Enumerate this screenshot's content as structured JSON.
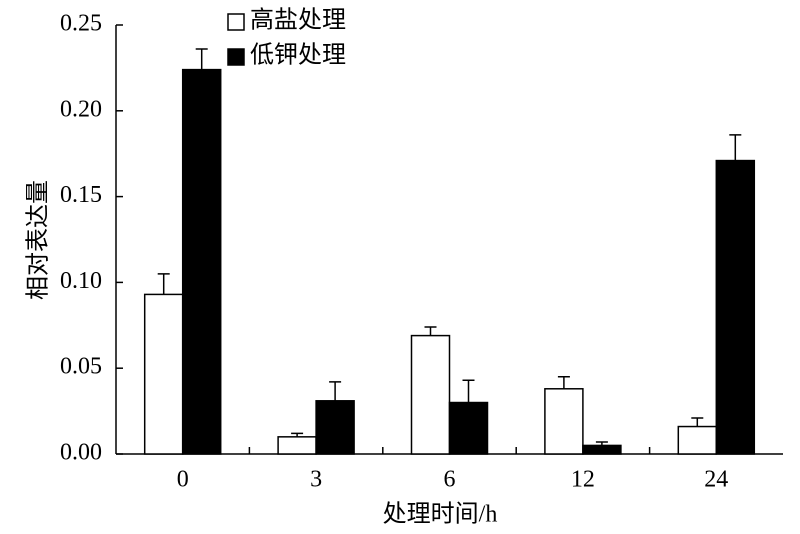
{
  "chart_data": {
    "type": "bar",
    "y_label": "相对表达量",
    "x_label": "处理时间/h",
    "categories": [
      "0",
      "3",
      "6",
      "12",
      "24"
    ],
    "series": [
      {
        "name": "高盐处理",
        "color": "#ffffff",
        "values": [
          0.093,
          0.01,
          0.069,
          0.038,
          0.016
        ],
        "errors": [
          0.012,
          0.002,
          0.005,
          0.007,
          0.005
        ]
      },
      {
        "name": "低钾处理",
        "color": "#000000",
        "values": [
          0.224,
          0.031,
          0.03,
          0.005,
          0.171
        ],
        "errors": [
          0.012,
          0.011,
          0.013,
          0.002,
          0.015
        ]
      }
    ],
    "ylim": [
      0,
      0.25
    ],
    "yticks": [
      {
        "value": 0,
        "label": "0.00"
      },
      0.05,
      {
        "value": 0.1,
        "label": "0.10"
      },
      0.15,
      {
        "value": 0.2,
        "label": "0.20"
      },
      0.25
    ],
    "legend": "upper-left",
    "grid": false
  }
}
